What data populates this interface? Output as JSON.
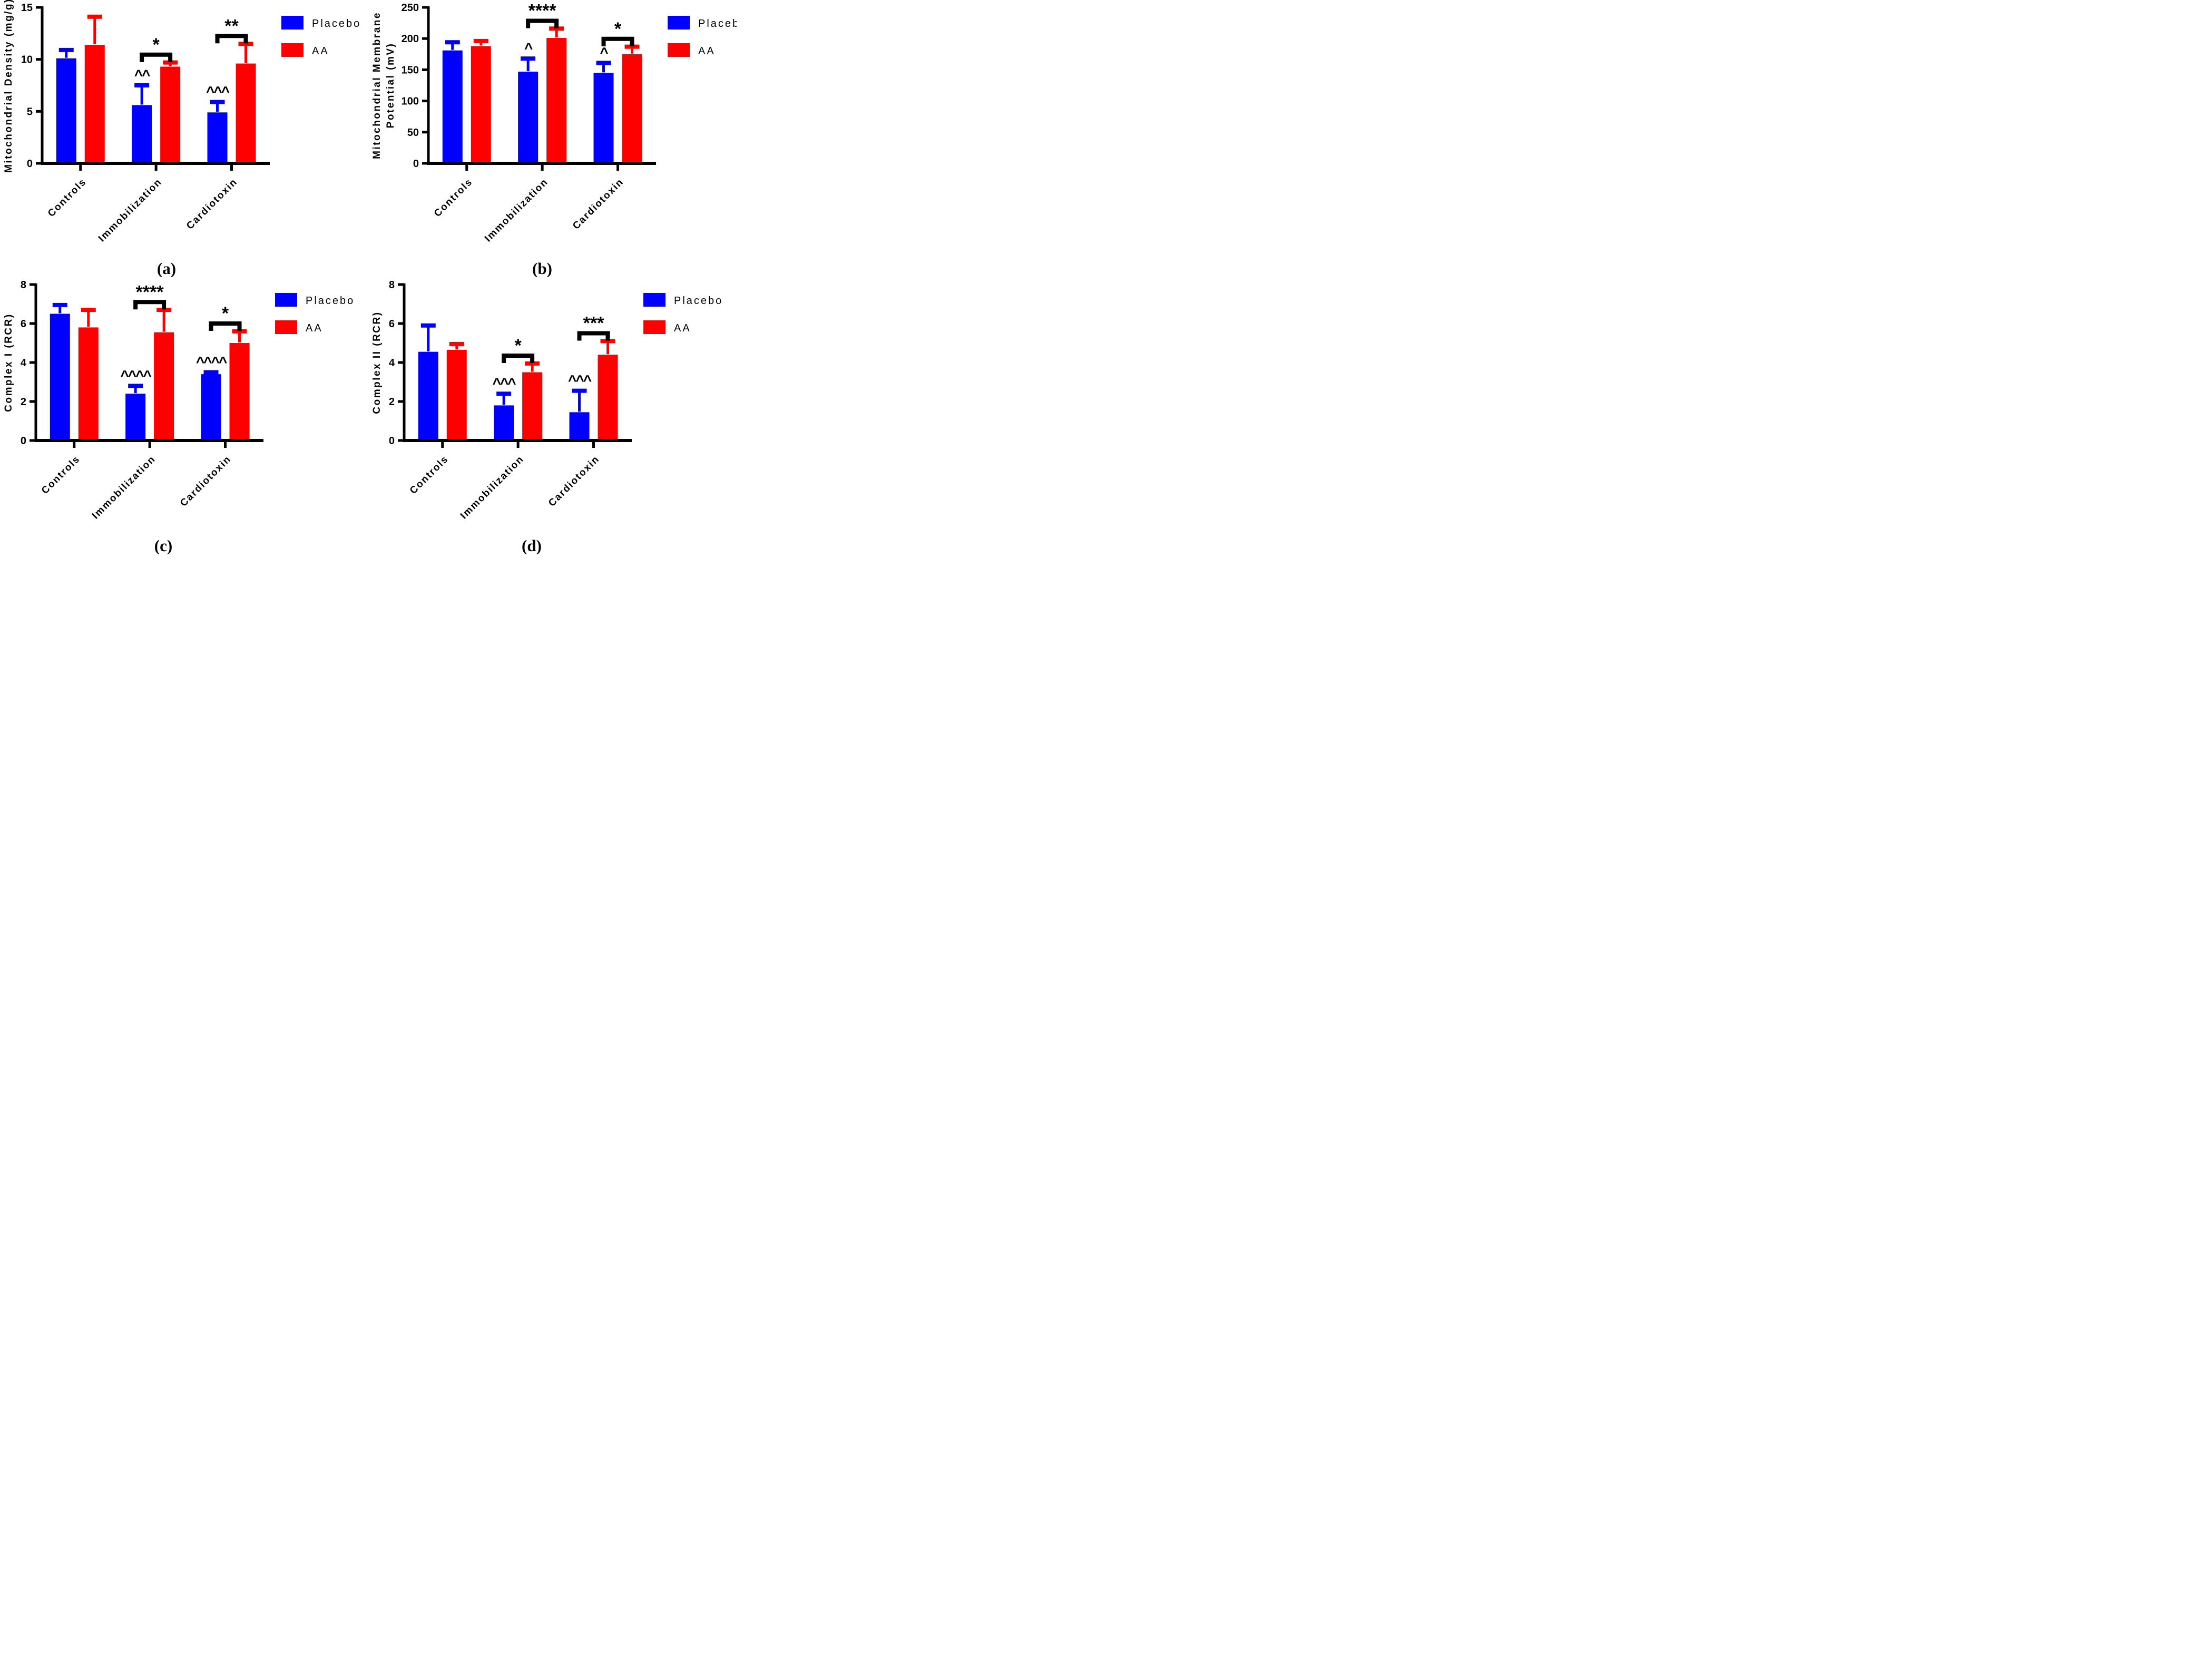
{
  "figure": {
    "background": "#FFFFFF",
    "colors": {
      "placebo": "#0000FF",
      "aa": "#FF0000",
      "axis": "#000000",
      "annotation": "#000000"
    },
    "legend": {
      "items": [
        {
          "key": "placebo",
          "label": "Placebo"
        },
        {
          "key": "aa",
          "label": "AA"
        }
      ],
      "position": "right-top"
    }
  },
  "categories": [
    "Controls",
    "Immobilization",
    "Cardiotoxin"
  ],
  "chart_data": [
    {
      "type": "bar",
      "panel_label": "(a)",
      "ylabel_lines": [
        "Mitochondrial Density (mg/g)"
      ],
      "ylim": [
        0,
        15
      ],
      "yticks": [
        0,
        5,
        10,
        15
      ],
      "categories": [
        "Controls",
        "Immobilization",
        "Cardiotoxin"
      ],
      "grid": false,
      "series": [
        {
          "name": "Placebo",
          "color_key": "placebo",
          "values": [
            10.1,
            5.6,
            4.9
          ],
          "errors_plus": [
            0.8,
            1.9,
            1.0
          ],
          "annotations": [
            "",
            "^^",
            "^^^"
          ]
        },
        {
          "name": "AA",
          "color_key": "aa",
          "values": [
            11.4,
            9.3,
            9.6
          ],
          "errors_plus": [
            2.7,
            0.4,
            1.9
          ],
          "annotations": [
            "",
            "",
            ""
          ]
        }
      ],
      "significance": [
        {
          "group_index": 1,
          "label": "*"
        },
        {
          "group_index": 2,
          "label": "**"
        }
      ]
    },
    {
      "type": "bar",
      "panel_label": "(b)",
      "ylabel_lines": [
        "Mitochondrial Membrane",
        "Potential (mV)"
      ],
      "ylim": [
        0,
        250
      ],
      "yticks": [
        0,
        50,
        100,
        150,
        200,
        250
      ],
      "categories": [
        "Controls",
        "Immobilization",
        "Cardiotoxin"
      ],
      "grid": false,
      "series": [
        {
          "name": "Placebo",
          "color_key": "placebo",
          "values": [
            181,
            147,
            145
          ],
          "errors_plus": [
            13,
            21,
            16
          ],
          "annotations": [
            "",
            "^",
            "^"
          ]
        },
        {
          "name": "AA",
          "color_key": "aa",
          "values": [
            188,
            201,
            175
          ],
          "errors_plus": [
            8,
            15,
            12
          ],
          "annotations": [
            "",
            "",
            ""
          ]
        }
      ],
      "significance": [
        {
          "group_index": 1,
          "label": "****"
        },
        {
          "group_index": 2,
          "label": "*"
        }
      ]
    },
    {
      "type": "bar",
      "panel_label": "(c)",
      "ylabel_lines": [
        "Complex I (RCR)"
      ],
      "ylim": [
        0,
        8
      ],
      "yticks": [
        0,
        2,
        4,
        6,
        8
      ],
      "categories": [
        "Controls",
        "Immobilization",
        "Cardiotoxin"
      ],
      "grid": false,
      "series": [
        {
          "name": "Placebo",
          "color_key": "placebo",
          "values": [
            6.5,
            2.4,
            3.4
          ],
          "errors_plus": [
            0.45,
            0.4,
            0.1
          ],
          "annotations": [
            "",
            "^^^^",
            "^^^^"
          ]
        },
        {
          "name": "AA",
          "color_key": "aa",
          "values": [
            5.8,
            5.55,
            5.0
          ],
          "errors_plus": [
            0.9,
            1.15,
            0.6
          ],
          "annotations": [
            "",
            "",
            ""
          ]
        }
      ],
      "significance": [
        {
          "group_index": 1,
          "label": "****"
        },
        {
          "group_index": 2,
          "label": "*"
        }
      ]
    },
    {
      "type": "bar",
      "panel_label": "(d)",
      "ylabel_lines": [
        "Complex II (RCR)"
      ],
      "ylim": [
        0,
        8
      ],
      "yticks": [
        0,
        2,
        4,
        6,
        8
      ],
      "categories": [
        "Controls",
        "Immobilization",
        "Cardiotoxin"
      ],
      "grid": false,
      "series": [
        {
          "name": "Placebo",
          "color_key": "placebo",
          "values": [
            4.55,
            1.8,
            1.45
          ],
          "errors_plus": [
            1.35,
            0.6,
            1.1
          ],
          "annotations": [
            "",
            "^^^",
            "^^^"
          ]
        },
        {
          "name": "AA",
          "color_key": "aa",
          "values": [
            4.65,
            3.5,
            4.4
          ],
          "errors_plus": [
            0.3,
            0.45,
            0.7
          ],
          "annotations": [
            "",
            "",
            ""
          ]
        }
      ],
      "significance": [
        {
          "group_index": 1,
          "label": "*"
        },
        {
          "group_index": 2,
          "label": "***"
        }
      ]
    }
  ]
}
